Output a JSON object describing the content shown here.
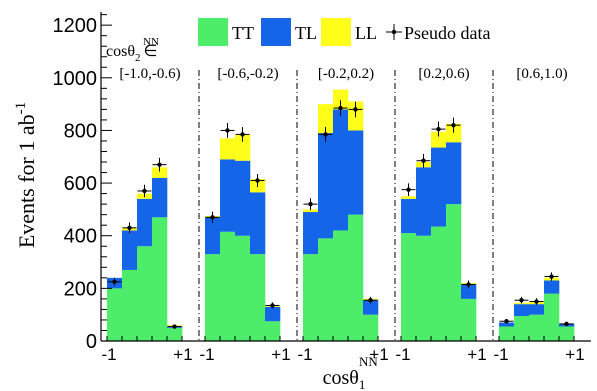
{
  "chart_data": {
    "type": "bar",
    "stacked": true,
    "ylabel": "Events for 1 ab",
    "ylabel_superscript": "-1",
    "xlabel": "cosθ",
    "xlabel_subscript": "1",
    "xlabel_superscript": "NN",
    "panel_prefix": "cosθ",
    "panel_prefix_subscript": "2",
    "panel_prefix_superscript": "NN",
    "panel_prefix_symbol": "∈",
    "ylim": [
      0,
      1250
    ],
    "yticks": [
      "0",
      "200",
      "400",
      "600",
      "800",
      "1000",
      "1200"
    ],
    "grid": false,
    "legend_position": "top",
    "x_tick_left": "-1",
    "x_tick_right": "+1",
    "series": [
      {
        "name": "TT",
        "color": "#4ded6a"
      },
      {
        "name": "TL",
        "color": "#1565e8"
      },
      {
        "name": "LL",
        "color": "#ffff19"
      },
      {
        "name": "Pseudo data",
        "color": "#000000"
      }
    ],
    "panels": [
      {
        "label": "[-1.0,-0.6)",
        "TT": [
          200,
          270,
          360,
          470,
          50
        ],
        "TL": [
          40,
          150,
          180,
          150,
          5
        ],
        "LL": [
          0,
          10,
          20,
          40,
          5
        ],
        "data": [
          225,
          430,
          570,
          670,
          55
        ]
      },
      {
        "label": "[-0.6,-0.2)",
        "TT": [
          330,
          415,
          400,
          330,
          75
        ],
        "TL": [
          140,
          275,
          285,
          235,
          55
        ],
        "LL": [
          5,
          80,
          100,
          50,
          5
        ],
        "data": [
          470,
          800,
          785,
          610,
          135
        ]
      },
      {
        "label": "[-0.2,0.2)",
        "TT": [
          330,
          390,
          420,
          480,
          100
        ],
        "TL": [
          160,
          400,
          460,
          320,
          55
        ],
        "LL": [
          10,
          110,
          75,
          110,
          5
        ],
        "data": [
          520,
          785,
          885,
          880,
          155
        ]
      },
      {
        "label": "[0.2,0.6)",
        "TT": [
          410,
          400,
          435,
          520,
          160
        ],
        "TL": [
          130,
          260,
          300,
          235,
          55
        ],
        "LL": [
          10,
          20,
          60,
          70,
          5
        ],
        "data": [
          575,
          685,
          805,
          820,
          215
        ]
      },
      {
        "label": "[0.6,1.0)",
        "TT": [
          55,
          95,
          100,
          180,
          55
        ],
        "TL": [
          15,
          45,
          40,
          50,
          10
        ],
        "LL": [
          0,
          5,
          10,
          10,
          0
        ],
        "data": [
          75,
          155,
          150,
          245,
          65
        ]
      }
    ]
  }
}
